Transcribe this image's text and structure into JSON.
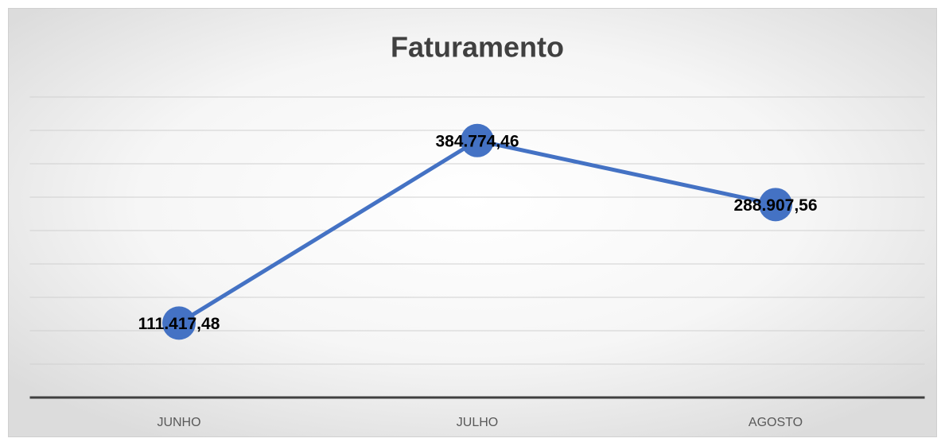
{
  "chart_data": {
    "type": "line",
    "title": "Faturamento",
    "categories": [
      "JUNHO",
      "JULHO",
      "AGOSTO"
    ],
    "series": [
      {
        "name": "Faturamento",
        "color": "#4472c4",
        "values": [
          111417.48,
          384774.46,
          288907.56
        ],
        "value_labels": [
          "111.417,48",
          "384.774,46",
          "288.907,56"
        ]
      }
    ],
    "ylim": [
      0,
      450000
    ],
    "yticks": [
      0,
      50000,
      100000,
      150000,
      200000,
      250000,
      300000,
      350000,
      400000,
      450000
    ],
    "grid": true,
    "legend": false
  }
}
